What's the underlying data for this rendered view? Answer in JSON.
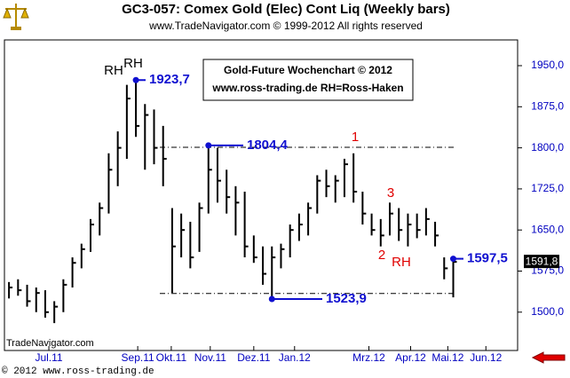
{
  "chart_data": {
    "type": "ohlc",
    "title": "GC3-057:  Comex Gold (Elec) Cont Liq  (Weekly bars)",
    "subtitle": "www.TradeNavigator.com © 1999-2012 All rights reserved",
    "watermark": "TradeNavigator.com",
    "footer": "© 2012  www.ross-trading.de",
    "info_box": [
      "Gold-Future Wochenchart © 2012",
      "www.ross-trading.de  RH=Ross-Haken"
    ],
    "color": "#000000",
    "high": [
      1555,
      1560,
      1550,
      1545,
      1540,
      1520,
      1560,
      1600,
      1625,
      1670,
      1700,
      1790,
      1830,
      1915,
      1923.7,
      1880,
      1870,
      1840,
      1690,
      1680,
      1665,
      1700,
      1804.4,
      1800,
      1760,
      1730,
      1720,
      1640,
      1620,
      1620,
      1625,
      1660,
      1680,
      1700,
      1750,
      1760,
      1750,
      1780,
      1790,
      1720,
      1680,
      1670,
      1700,
      1690,
      1680,
      1680,
      1690,
      1665,
      1600,
      1597.5
    ],
    "low": [
      1525,
      1530,
      1510,
      1500,
      1490,
      1480,
      1500,
      1545,
      1580,
      1610,
      1640,
      1680,
      1730,
      1780,
      1820,
      1760,
      1770,
      1730,
      1535,
      1600,
      1580,
      1610,
      1680,
      1700,
      1680,
      1640,
      1600,
      1590,
      1550,
      1523.9,
      1580,
      1600,
      1630,
      1640,
      1680,
      1710,
      1700,
      1710,
      1700,
      1660,
      1640,
      1620,
      1640,
      1630,
      1620,
      1635,
      1640,
      1620,
      1560,
      1527
    ],
    "close": [
      1545,
      1540,
      1520,
      1535,
      1500,
      1510,
      1550,
      1590,
      1615,
      1660,
      1690,
      1760,
      1800,
      1890,
      1840,
      1860,
      1800,
      1780,
      1620,
      1650,
      1600,
      1690,
      1760,
      1740,
      1710,
      1700,
      1620,
      1600,
      1570,
      1600,
      1615,
      1650,
      1660,
      1690,
      1740,
      1730,
      1740,
      1770,
      1720,
      1680,
      1650,
      1640,
      1680,
      1650,
      1660,
      1650,
      1670,
      1640,
      1580,
      1591.8
    ],
    "last_price": {
      "value": 1591.8,
      "label": "1591,8"
    },
    "callouts": [
      {
        "value": 1923.7,
        "label": "1923,7"
      },
      {
        "value": 1804.4,
        "label": "1804,4"
      },
      {
        "value": 1523.9,
        "label": "1523,9"
      },
      {
        "value": 1597.5,
        "label": "1597,5"
      }
    ],
    "hlines": [
      1801,
      1534
    ],
    "annotations": [
      "RH",
      "RH",
      "1",
      "2",
      "3",
      "RH"
    ],
    "xlim": [
      -0.5,
      56.1
    ],
    "xticks": [
      {
        "value": 4.4,
        "label": "Jul.11"
      },
      {
        "value": 14.2,
        "label": "Sep.11"
      },
      {
        "value": 17.9,
        "label": "Okt.11"
      },
      {
        "value": 22.2,
        "label": "Nov.11"
      },
      {
        "value": 27,
        "label": "Dez.11"
      },
      {
        "value": 31.5,
        "label": "Jan.12"
      },
      {
        "value": 39.7,
        "label": "Mrz.12"
      },
      {
        "value": 44.3,
        "label": "Apr.12"
      },
      {
        "value": 48.4,
        "label": "Mai.12"
      },
      {
        "value": 52.6,
        "label": "Jun.12"
      }
    ],
    "ylim": [
      1430,
      1997
    ],
    "yticks": [
      {
        "value": 1500,
        "label": "1500,0"
      },
      {
        "value": 1575,
        "label": "1575,0"
      },
      {
        "value": 1650,
        "label": "1650,0"
      },
      {
        "value": 1725,
        "label": "1725,0"
      },
      {
        "value": 1800,
        "label": "1800,0"
      },
      {
        "value": 1875,
        "label": "1875,0"
      },
      {
        "value": 1950,
        "label": "1950,0"
      }
    ]
  }
}
